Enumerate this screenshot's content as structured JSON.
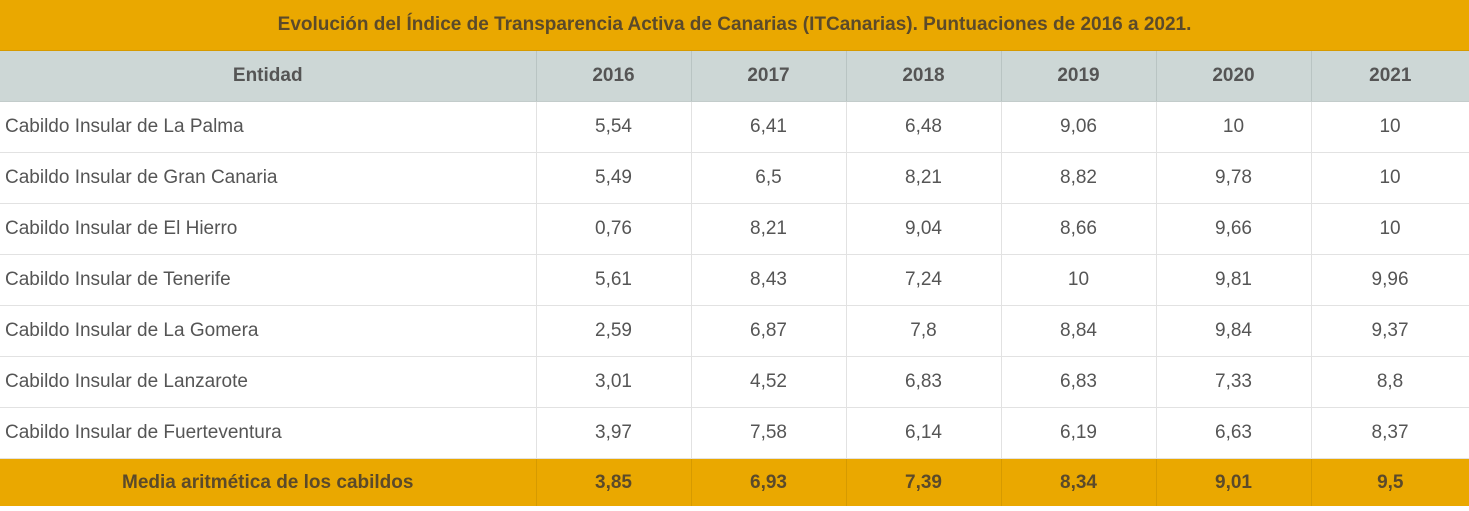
{
  "table": {
    "title": "Evolución del Índice de Transparencia Activa de Canarias (ITCanarias). Puntuaciones de 2016 a 2021.",
    "columns": [
      "Entidad",
      "2016",
      "2017",
      "2018",
      "2019",
      "2020",
      "2021"
    ],
    "rows": [
      [
        "Cabildo Insular de La Palma",
        "5,54",
        "6,41",
        "6,48",
        "9,06",
        "10",
        "10"
      ],
      [
        "Cabildo Insular de Gran Canaria",
        "5,49",
        "6,5",
        "8,21",
        "8,82",
        "9,78",
        "10"
      ],
      [
        "Cabildo Insular de El Hierro",
        "0,76",
        "8,21",
        "9,04",
        "8,66",
        "9,66",
        "10"
      ],
      [
        "Cabildo Insular de Tenerife",
        "5,61",
        "8,43",
        "7,24",
        "10",
        "9,81",
        "9,96"
      ],
      [
        "Cabildo Insular de La Gomera",
        "2,59",
        "6,87",
        "7,8",
        "8,84",
        "9,84",
        "9,37"
      ],
      [
        "Cabildo Insular de Lanzarote",
        "3,01",
        "4,52",
        "6,83",
        "6,83",
        "7,33",
        "8,8"
      ],
      [
        "Cabildo Insular de Fuerteventura",
        "3,97",
        "7,58",
        "6,14",
        "6,19",
        "6,63",
        "8,37"
      ]
    ],
    "footer": [
      "Media aritmética de los cabildos",
      "3,85",
      "6,93",
      "7,39",
      "8,34",
      "9,01",
      "9,5"
    ]
  },
  "colors": {
    "accent": "#eaa800",
    "header_bg": "#cdd7d6",
    "accent_text": "#5b4a2a",
    "body_text": "#555555"
  }
}
